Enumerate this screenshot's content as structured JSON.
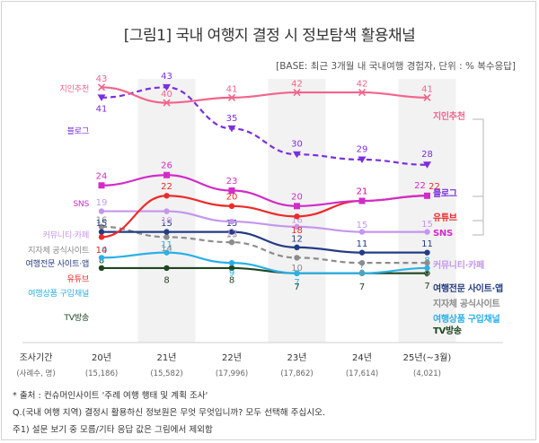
{
  "title": "[그림1] 국내 여행지 결정 시 정보탐색 활용채널",
  "base_note": "[BASE: 최근 3개월 내 국내여행 경험자, 단위 : % 복수응답]",
  "footnotes": [
    "* 출처 : 컨슈머인사이트 '주례 여행 행태 및 계획 조사'",
    "Q.(국내 여행 지역) 결정시 활용하신 정보원은 무엇 무엇입니까? 모두 선택해 주십시오.",
    "주1) 설문 보기 중 모름/기타 응답 값은 그림에서 제외함"
  ],
  "chart_data": {
    "type": "line",
    "title": "[그림1] 국내 여행지 결정 시 정보탐색 활용채널",
    "xlabel": "조사기간",
    "ylabel": "",
    "ylim": [
      0,
      50
    ],
    "categories": [
      "20년",
      "21년",
      "22년",
      "23년",
      "24년",
      "25년(~3월)"
    ],
    "row_label": "(사례수, 명)",
    "sample_sizes": [
      "(15,186)",
      "(15,582)",
      "(17,996)",
      "(17,862)",
      "(17,614)",
      "(4,021)"
    ],
    "shaded_columns": [
      1,
      3,
      5
    ],
    "bracket_label_series": [
      "지인추천",
      "블로그",
      "유튜브",
      "SNS"
    ],
    "series": [
      {
        "name": "지인추천",
        "right_label": "지인추천",
        "color": "#f2648c",
        "dash": false,
        "marker": "x",
        "values": [
          43,
          40,
          41,
          42,
          42,
          41
        ]
      },
      {
        "name": "블로그",
        "right_label": "블로그",
        "color": "#7b2ee0",
        "dash": true,
        "marker": "triangle",
        "values": [
          41,
          43,
          35,
          30,
          29,
          28
        ]
      },
      {
        "name": "SNS",
        "right_label": "SNS",
        "color": "#d22cc8",
        "dash": false,
        "marker": "square",
        "values": [
          24,
          26,
          23,
          20,
          21,
          22
        ]
      },
      {
        "name": "유튜브",
        "right_label": "유튜브",
        "color": "#ee2a2a",
        "dash": false,
        "marker": "circle",
        "values": [
          14,
          22,
          20,
          18,
          21,
          22
        ]
      },
      {
        "name": "커뮤니티·카페",
        "right_label": "커뮤니티·카페",
        "color": "#c496ee",
        "dash": false,
        "marker": "circle",
        "values": [
          19,
          19,
          17,
          16,
          15,
          15
        ]
      },
      {
        "name": "여행전문 사이트·앱",
        "right_label": "여행전문 사이트·앱",
        "color": "#243c84",
        "dash": false,
        "marker": "circle",
        "values": [
          15,
          15,
          15,
          12,
          11,
          11
        ]
      },
      {
        "name": "지자체 공식사이트",
        "right_label": "지자체 공식사이트",
        "color": "#8c8c8c",
        "dash": true,
        "marker": "circle",
        "values": [
          16,
          14,
          13,
          10,
          9,
          9
        ]
      },
      {
        "name": "여행상품 구입채널",
        "right_label": "여행상품 구입채널",
        "color": "#2ab0e8",
        "dash": false,
        "marker": "circle",
        "values": [
          10,
          11,
          9,
          7,
          7,
          8
        ]
      },
      {
        "name": "TV방송",
        "right_label": "TV방송",
        "color": "#1e4620",
        "dash": false,
        "marker": "circle",
        "values": [
          8,
          8,
          8,
          7,
          7,
          7
        ]
      }
    ]
  }
}
